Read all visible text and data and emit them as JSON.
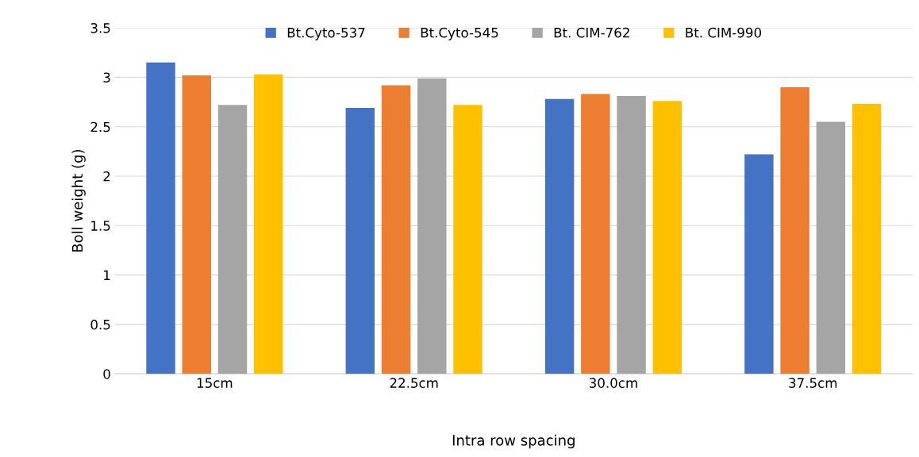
{
  "chart_data": {
    "type": "bar",
    "xlabel": "Intra row spacing",
    "ylabel": "Boll weight (g)",
    "categories": [
      "15cm",
      "22.5cm",
      "30.0cm",
      "37.5cm"
    ],
    "series": [
      {
        "name": "Bt.Cyto-537",
        "color": "#4472c4",
        "values": [
          3.15,
          2.69,
          2.78,
          2.22
        ]
      },
      {
        "name": "Bt.Cyto-545",
        "color": "#ed7d31",
        "values": [
          3.02,
          2.92,
          2.83,
          2.9
        ]
      },
      {
        "name": "Bt. CIM-762",
        "color": "#a5a5a5",
        "values": [
          2.72,
          2.99,
          2.81,
          2.55
        ]
      },
      {
        "name": "Bt. CIM-990",
        "color": "#ffc000",
        "values": [
          3.03,
          2.72,
          2.76,
          2.73
        ]
      }
    ],
    "ylim": [
      0,
      3.5
    ],
    "yticks": [
      0,
      0.5,
      1,
      1.5,
      2,
      2.5,
      3,
      3.5
    ],
    "grid": "y",
    "legend": "top"
  }
}
